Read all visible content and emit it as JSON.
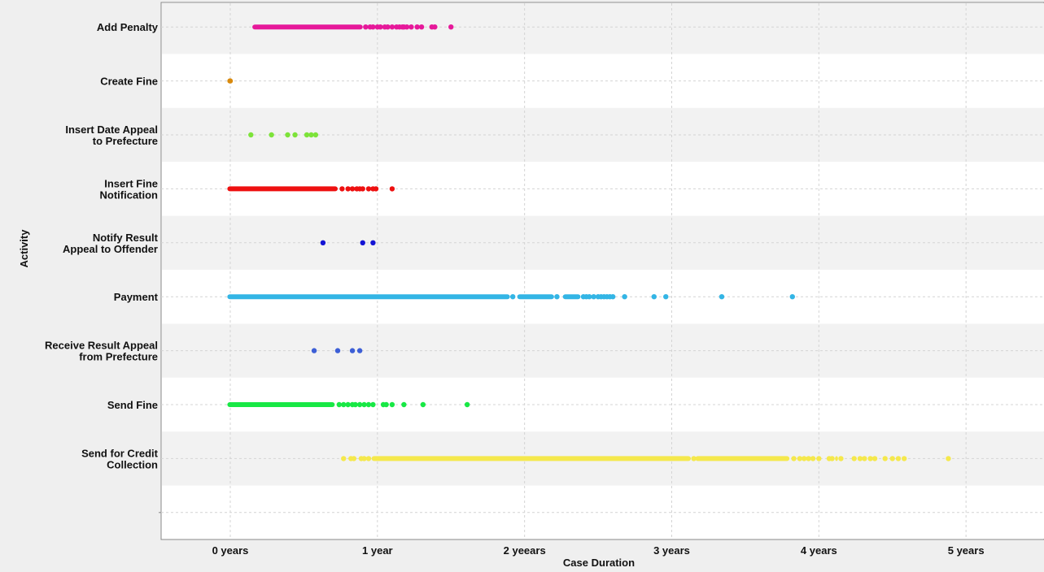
{
  "chart_data": {
    "type": "scatter",
    "title": "",
    "xlabel": "Case Duration",
    "ylabel": "Activity",
    "xlim": [
      -0.47,
      5.53
    ],
    "grid": true,
    "legend": "none",
    "x_ticks": [
      {
        "value": 0,
        "label": "0 years"
      },
      {
        "value": 1,
        "label": "1 year"
      },
      {
        "value": 2,
        "label": "2 yeears"
      },
      {
        "value": 3,
        "label": "3 years"
      },
      {
        "value": 4,
        "label": "4 years"
      },
      {
        "value": 5,
        "label": "5 years"
      }
    ],
    "categories": [
      "Add Penalty",
      "Create Fine",
      "Insert Date Appeal\nto Prefecture",
      "Insert Fine\nNotification",
      "Notify Result\nAppeal to Offender",
      "Payment",
      "Receive Result Appeal\nfrom Prefecture",
      "Send Fine",
      "Send for Credit\nCollection"
    ],
    "series": [
      {
        "category": "Add Penalty",
        "color": "#e6199a",
        "ranges": [
          [
            0.15,
            0.9
          ]
        ],
        "points": [
          0.92,
          0.95,
          0.97,
          1.0,
          1.02,
          1.05,
          1.07,
          1.1,
          1.13,
          1.15,
          1.17,
          1.18,
          1.2,
          1.23,
          1.27,
          1.3,
          1.37,
          1.39,
          1.5
        ]
      },
      {
        "category": "Create Fine",
        "color": "#d98a0d",
        "ranges": [
          [
            -0.02,
            0.01
          ]
        ],
        "points": [
          0.0
        ]
      },
      {
        "category": "Insert Date Appeal\nto Prefecture",
        "color": "#7de33a",
        "ranges": [],
        "points": [
          0.14,
          0.28,
          0.39,
          0.44,
          0.52,
          0.55,
          0.58
        ]
      },
      {
        "category": "Insert Fine\nNotification",
        "color": "#ee1010",
        "ranges": [
          [
            -0.02,
            0.73
          ]
        ],
        "points": [
          0.76,
          0.8,
          0.83,
          0.86,
          0.88,
          0.9,
          0.94,
          0.97,
          0.99,
          1.1
        ]
      },
      {
        "category": "Notify Result\nAppeal to Offender",
        "color": "#1414d4",
        "ranges": [],
        "points": [
          0.63,
          0.9,
          0.97
        ]
      },
      {
        "category": "Payment",
        "color": "#33b5e5",
        "ranges": [
          [
            -0.02,
            1.9
          ],
          [
            1.95,
            2.2
          ],
          [
            2.26,
            2.38
          ]
        ],
        "points": [
          1.92,
          2.22,
          2.4,
          2.42,
          2.44,
          2.47,
          2.5,
          2.52,
          2.54,
          2.56,
          2.58,
          2.6,
          2.68,
          2.88,
          2.96,
          3.34,
          3.82
        ]
      },
      {
        "category": "Receive Result Appeal\nfrom Prefecture",
        "color": "#3d5fd6",
        "ranges": [],
        "points": [
          0.57,
          0.73,
          0.83,
          0.88
        ]
      },
      {
        "category": "Send Fine",
        "color": "#18e845",
        "ranges": [
          [
            -0.02,
            0.71
          ]
        ],
        "points": [
          0.74,
          0.77,
          0.8,
          0.83,
          0.85,
          0.88,
          0.91,
          0.94,
          0.97,
          1.04,
          1.06,
          1.1,
          1.18,
          1.31,
          1.61
        ]
      },
      {
        "category": "Send for Credit\nCollection",
        "color": "#f5e84c",
        "ranges": [
          [
            0.96,
            3.13
          ],
          [
            3.16,
            3.8
          ],
          [
            4.11,
            4.13
          ]
        ],
        "points": [
          0.77,
          0.82,
          0.84,
          0.89,
          0.91,
          0.94,
          3.15,
          3.83,
          3.87,
          3.9,
          3.93,
          3.96,
          4.0,
          4.07,
          4.09,
          4.15,
          4.24,
          4.28,
          4.31,
          4.35,
          4.38,
          4.45,
          4.5,
          4.54,
          4.58,
          4.88
        ]
      }
    ]
  }
}
